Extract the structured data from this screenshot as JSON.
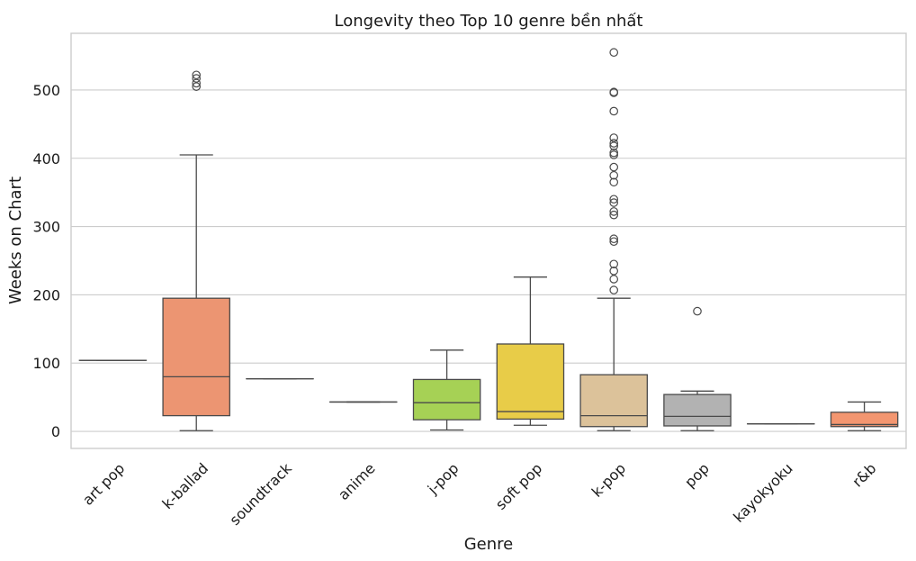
{
  "chart_data": {
    "type": "box",
    "title": "Longevity theo Top 10 genre bền nhất",
    "xlabel": "Genre",
    "ylabel": "Weeks on Chart",
    "ylim": [
      -25,
      583
    ],
    "yticks": [
      0,
      100,
      200,
      300,
      400,
      500
    ],
    "grid": true,
    "categories": [
      {
        "name": "art pop",
        "color": "#66c2a5",
        "min": 104,
        "q1": 104,
        "median": 104,
        "q3": 104,
        "max": 104,
        "outliers": []
      },
      {
        "name": "k-ballad",
        "color": "#ec9572",
        "min": 1,
        "q1": 23,
        "median": 80,
        "q3": 195,
        "max": 405,
        "outliers": [
          505,
          510,
          517,
          522
        ]
      },
      {
        "name": "soundtrack",
        "color": "#8da0cb",
        "min": 77,
        "q1": 77,
        "median": 77,
        "q3": 77,
        "max": 77,
        "outliers": []
      },
      {
        "name": "anime",
        "color": "#e78ac3",
        "min": 43,
        "q1": 43,
        "median": 43,
        "q3": 43,
        "max": 43,
        "outliers": []
      },
      {
        "name": "j-pop",
        "color": "#a6d155",
        "min": 2,
        "q1": 17,
        "median": 42,
        "q3": 76,
        "max": 119,
        "outliers": []
      },
      {
        "name": "soft pop",
        "color": "#e8cc48",
        "min": 9,
        "q1": 18,
        "median": 29,
        "q3": 128,
        "max": 226,
        "outliers": []
      },
      {
        "name": "k-pop",
        "color": "#dcc29a",
        "min": 1,
        "q1": 7,
        "median": 23,
        "q3": 83,
        "max": 195,
        "outliers": [
          207,
          223,
          235,
          245,
          278,
          282,
          317,
          322,
          335,
          340,
          365,
          375,
          387,
          405,
          408,
          418,
          422,
          430,
          469,
          496,
          497,
          555
        ]
      },
      {
        "name": "pop",
        "color": "#b2b2b2",
        "min": 1,
        "q1": 8,
        "median": 22,
        "q3": 54,
        "max": 59,
        "outliers": [
          176
        ]
      },
      {
        "name": "kayokyoku",
        "color": "#66c2a5",
        "min": 11,
        "q1": 11,
        "median": 11,
        "q3": 11,
        "max": 11,
        "outliers": []
      },
      {
        "name": "r&b",
        "color": "#f39670",
        "min": 1,
        "q1": 7,
        "median": 10,
        "q3": 28,
        "max": 43,
        "outliers": []
      }
    ]
  }
}
